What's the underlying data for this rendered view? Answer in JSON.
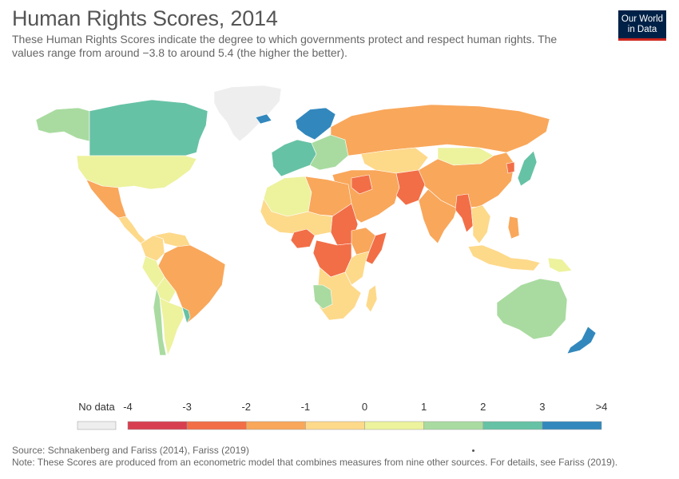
{
  "header": {
    "title": "Human Rights Scores, 2014",
    "subtitle": "These Human Rights Scores indicate the degree to which governments protect and respect human rights. The values range from around −3.8 to around 5.4 (the higher the better)."
  },
  "logo": {
    "line1": "Our World",
    "line2": "in Data"
  },
  "legend": {
    "no_data_label": "No data",
    "tick_labels": [
      "-4",
      "-3",
      "-2",
      "-1",
      "0",
      "1",
      "2",
      "3",
      ">4"
    ],
    "bins": [
      {
        "from": -4,
        "to": -3,
        "color": "#d73f50"
      },
      {
        "from": -3,
        "to": -2,
        "color": "#f26e47"
      },
      {
        "from": -2,
        "to": -1,
        "color": "#f9a75b"
      },
      {
        "from": -1,
        "to": 0,
        "color": "#fdd98a"
      },
      {
        "from": 0,
        "to": 1,
        "color": "#edf29d"
      },
      {
        "from": 1,
        "to": 2,
        "color": "#a9dba0"
      },
      {
        "from": 2,
        "to": 3,
        "color": "#66c2a5"
      },
      {
        "from": 3,
        "to": 4,
        "color": "#3288bd"
      }
    ],
    "no_data_color": "#eeeeee"
  },
  "map": {
    "regions": [
      {
        "name": "Greenland",
        "bin": "no-data"
      },
      {
        "name": "Canada",
        "bin": 2
      },
      {
        "name": "Alaska",
        "bin": 1
      },
      {
        "name": "United States",
        "bin": 0
      },
      {
        "name": "Mexico",
        "bin": -2
      },
      {
        "name": "Central America",
        "bin": -1
      },
      {
        "name": "Colombia",
        "bin": -1
      },
      {
        "name": "Venezuela",
        "bin": -1
      },
      {
        "name": "Brazil",
        "bin": -2
      },
      {
        "name": "Peru",
        "bin": 0
      },
      {
        "name": "Bolivia",
        "bin": 0
      },
      {
        "name": "Chile",
        "bin": 1
      },
      {
        "name": "Argentina",
        "bin": 0
      },
      {
        "name": "Uruguay",
        "bin": 2
      },
      {
        "name": "Iceland",
        "bin": 3
      },
      {
        "name": "Scandinavia",
        "bin": 3
      },
      {
        "name": "Western Europe",
        "bin": 2
      },
      {
        "name": "Eastern Europe",
        "bin": 1
      },
      {
        "name": "Russia",
        "bin": -2
      },
      {
        "name": "Kazakhstan",
        "bin": -1
      },
      {
        "name": "Mongolia",
        "bin": 0
      },
      {
        "name": "China",
        "bin": -2
      },
      {
        "name": "Japan",
        "bin": 2
      },
      {
        "name": "North Korea",
        "bin": -3
      },
      {
        "name": "Middle East",
        "bin": -2
      },
      {
        "name": "Iraq Syria",
        "bin": -3
      },
      {
        "name": "Afghanistan Pakistan",
        "bin": -3
      },
      {
        "name": "India",
        "bin": -2
      },
      {
        "name": "Myanmar",
        "bin": -3
      },
      {
        "name": "Southeast Asia",
        "bin": -1
      },
      {
        "name": "Philippines",
        "bin": -2
      },
      {
        "name": "Indonesia",
        "bin": -1
      },
      {
        "name": "Papua New Guinea",
        "bin": 0
      },
      {
        "name": "Australia",
        "bin": 1
      },
      {
        "name": "New Zealand",
        "bin": 3
      },
      {
        "name": "North Africa",
        "bin": 0
      },
      {
        "name": "Egypt Libya",
        "bin": -2
      },
      {
        "name": "Sudan",
        "bin": -3
      },
      {
        "name": "Sahel",
        "bin": -1
      },
      {
        "name": "Nigeria",
        "bin": -3
      },
      {
        "name": "DR Congo",
        "bin": -3
      },
      {
        "name": "Ethiopia Somalia",
        "bin": -2
      },
      {
        "name": "Somalia",
        "bin": -3
      },
      {
        "name": "East Africa",
        "bin": -1
      },
      {
        "name": "Southern Africa",
        "bin": -1
      },
      {
        "name": "Namibia Botswana",
        "bin": 1
      },
      {
        "name": "Madagascar",
        "bin": -1
      }
    ]
  },
  "footer": {
    "source": "Source: Schnakenberg and Fariss (2014), Fariss (2019)",
    "note": "Note: These Scores are produced from an econometric model that combines measures from nine other sources. For details, see Fariss (2019)."
  }
}
